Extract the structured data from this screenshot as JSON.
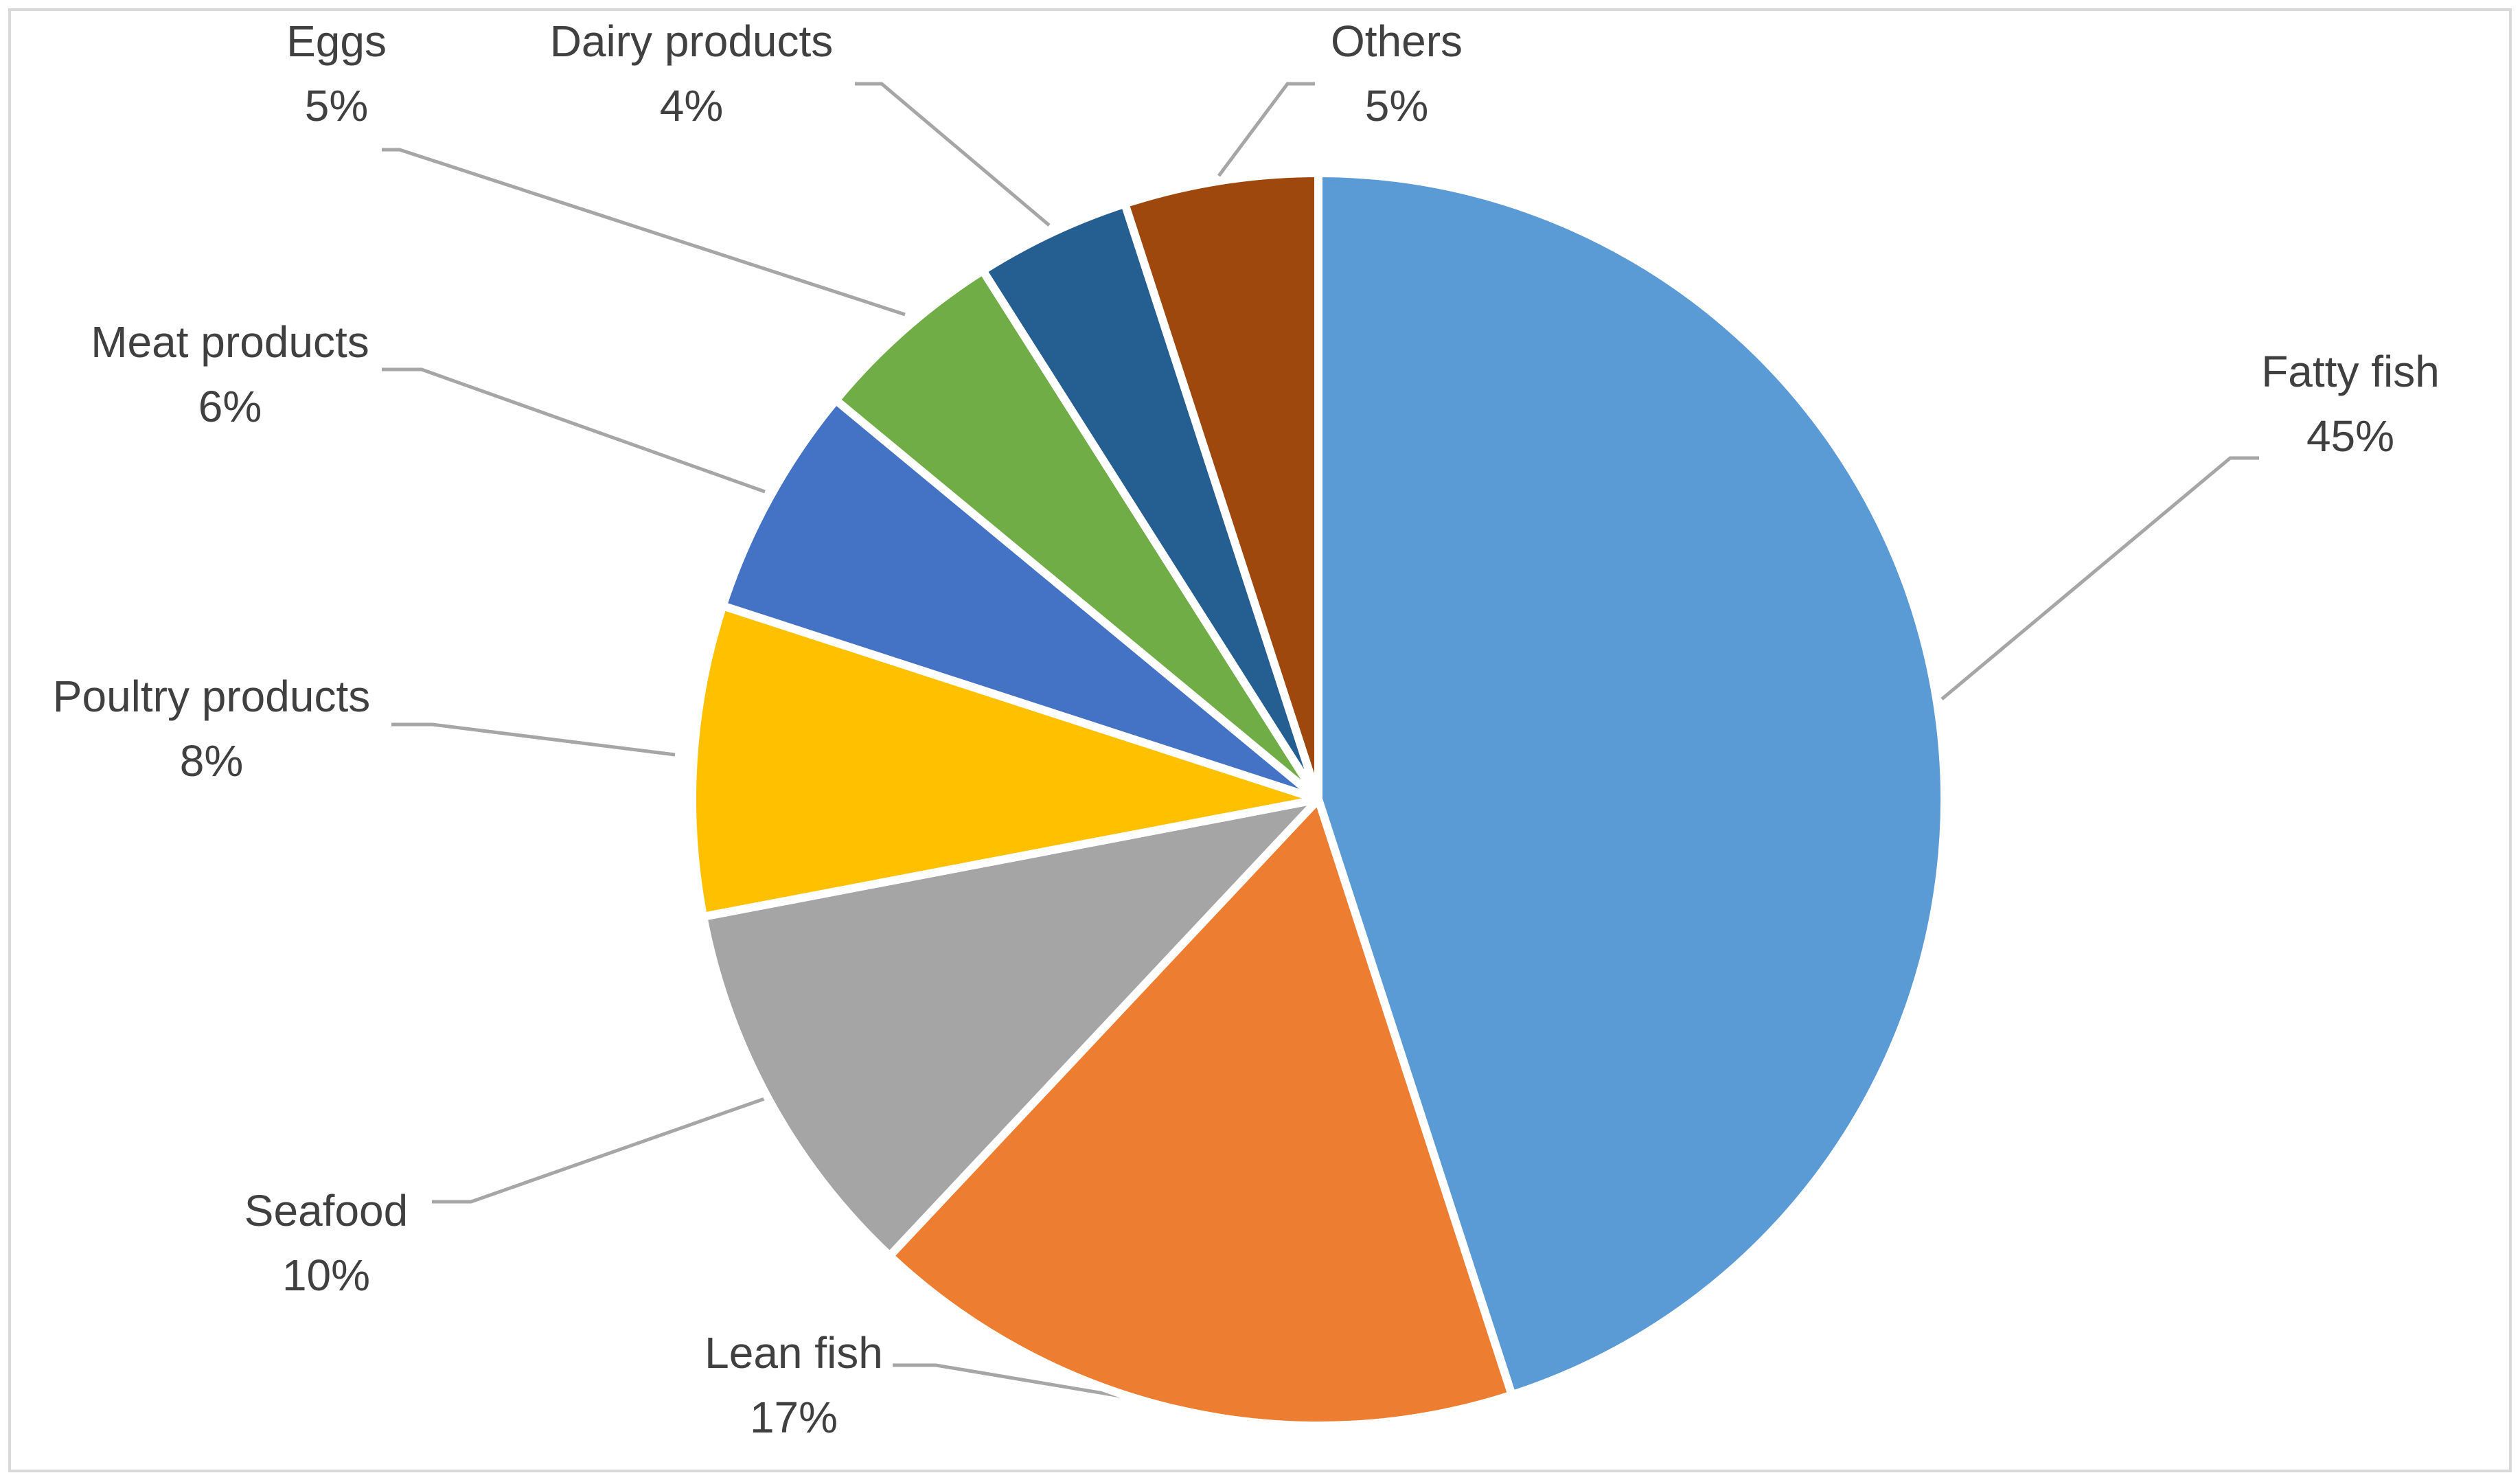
{
  "chart_data": {
    "type": "pie",
    "title": "",
    "legend": "none",
    "start_angle_deg": 0,
    "direction": "clockwise",
    "slices": [
      {
        "label": "Fatty fish",
        "value": 45,
        "display": "45%",
        "color": "#5B9BD5"
      },
      {
        "label": "Lean fish",
        "value": 17,
        "display": "17%",
        "color": "#ED7D31"
      },
      {
        "label": "Seafood",
        "value": 10,
        "display": "10%",
        "color": "#A5A5A5"
      },
      {
        "label": "Poultry products",
        "value": 8,
        "display": "8%",
        "color": "#FFC000"
      },
      {
        "label": "Meat products",
        "value": 6,
        "display": "6%",
        "color": "#4472C4"
      },
      {
        "label": "Eggs",
        "value": 5,
        "display": "5%",
        "color": "#70AD47"
      },
      {
        "label": "Dairy products",
        "value": 4,
        "display": "4%",
        "color": "#255E91"
      },
      {
        "label": "Others",
        "value": 5,
        "display": "5%",
        "color": "#9E480E"
      }
    ]
  }
}
